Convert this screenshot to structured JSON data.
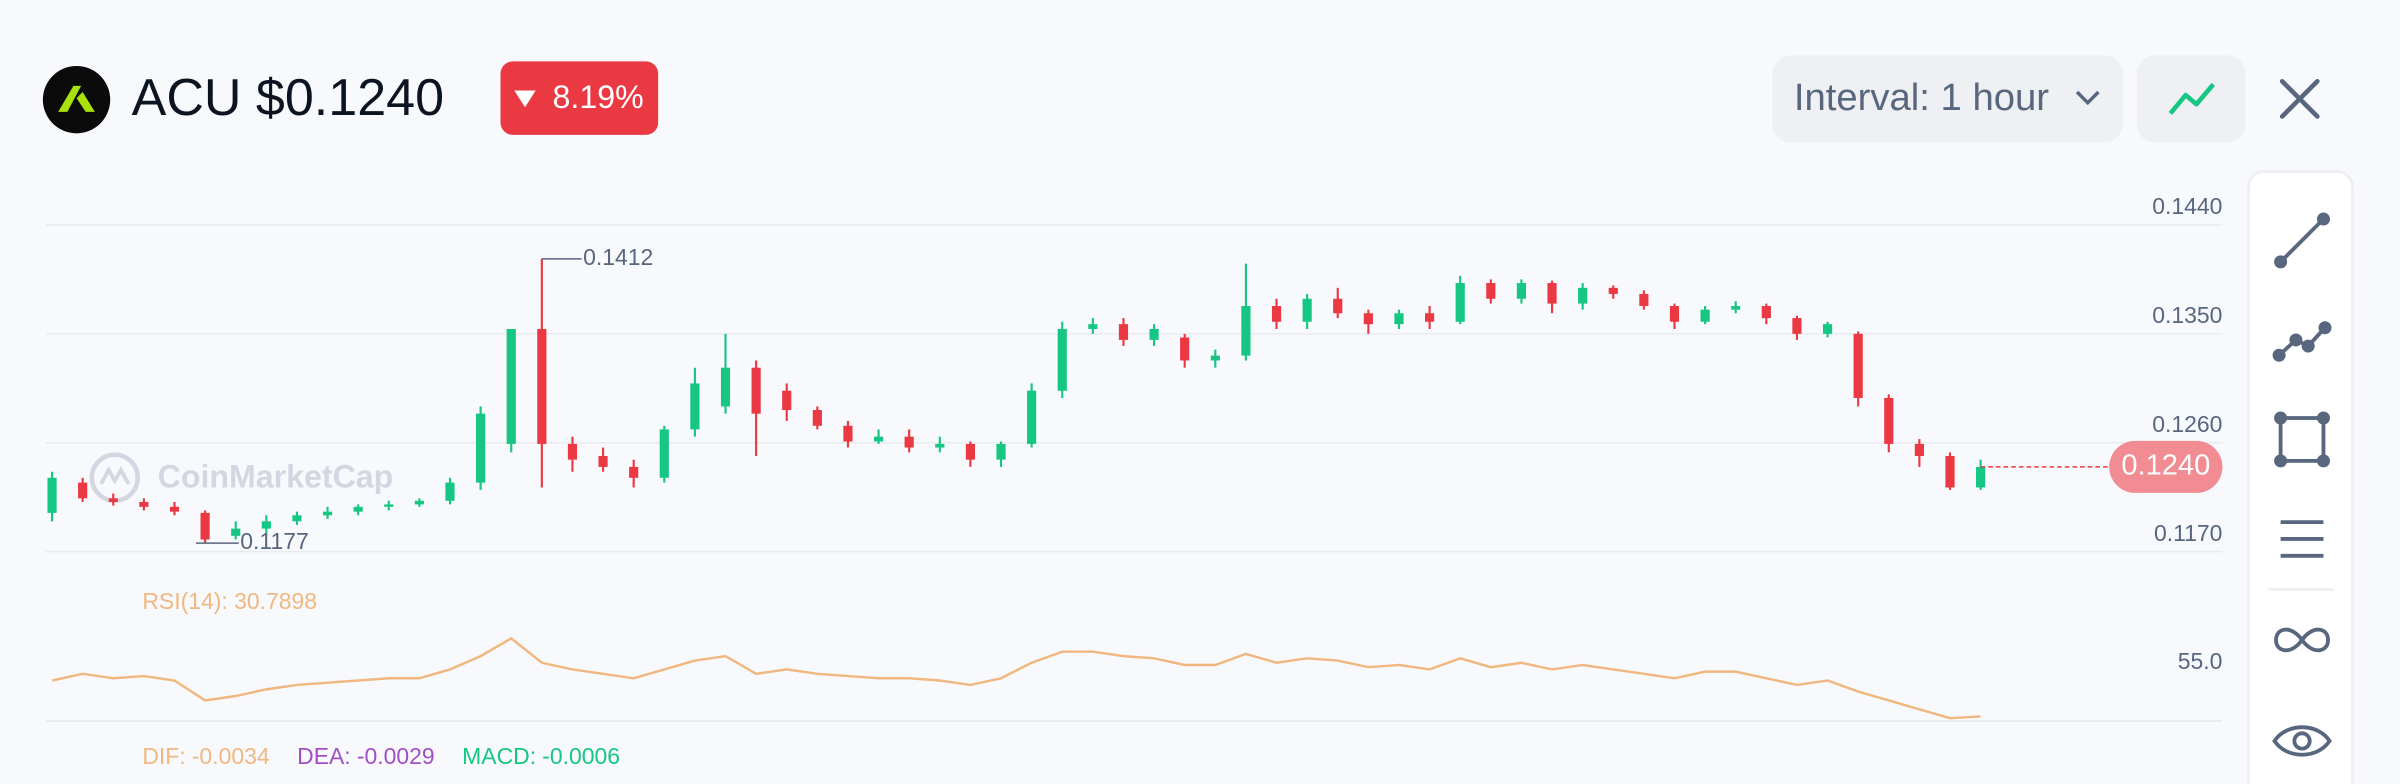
{
  "header": {
    "symbol": "ACU $0.1240",
    "change": "8.19%",
    "interval": "Interval: 1 hour"
  },
  "chart_data": {
    "type": "candlestick",
    "watermark": "CoinMarketCap",
    "up_color": "#16c784",
    "down_color": "#ea3943",
    "open": [
      0.1202,
      0.1227,
      0.1214,
      0.1211,
      0.1207,
      0.1202,
      0.1183,
      0.1189,
      0.1195,
      0.12,
      0.1203,
      0.1207,
      0.1209,
      0.1212,
      0.1227,
      0.1259,
      0.1354,
      0.1259,
      0.1249,
      0.124,
      0.1231,
      0.1271,
      0.129,
      0.1322,
      0.1303,
      0.1287,
      0.1274,
      0.1261,
      0.1265,
      0.1256,
      0.1259,
      0.1246,
      0.1259,
      0.1303,
      0.1354,
      0.1358,
      0.1345,
      0.1347,
      0.1328,
      0.1332,
      0.1373,
      0.136,
      0.1379,
      0.1367,
      0.1358,
      0.1367,
      0.136,
      0.1392,
      0.1379,
      0.1392,
      0.1375,
      0.1388,
      0.1383,
      0.1373,
      0.136,
      0.137,
      0.1373,
      0.1363,
      0.135,
      0.135,
      0.1297,
      0.1259,
      0.1249,
      0.1223
    ],
    "high": [
      0.1236,
      0.1231,
      0.1218,
      0.1214,
      0.1211,
      0.1204,
      0.1195,
      0.12,
      0.1203,
      0.1207,
      0.1209,
      0.1212,
      0.1214,
      0.1231,
      0.129,
      0.1354,
      0.1412,
      0.1265,
      0.1256,
      0.1246,
      0.1274,
      0.1322,
      0.135,
      0.1328,
      0.1309,
      0.129,
      0.1278,
      0.1271,
      0.1271,
      0.1265,
      0.1261,
      0.1261,
      0.1309,
      0.136,
      0.1363,
      0.1363,
      0.1358,
      0.135,
      0.1337,
      0.1408,
      0.1379,
      0.1383,
      0.1388,
      0.137,
      0.137,
      0.1373,
      0.1398,
      0.1395,
      0.1395,
      0.1394,
      0.1392,
      0.139,
      0.1386,
      0.1375,
      0.1373,
      0.1377,
      0.1375,
      0.1365,
      0.136,
      0.1352,
      0.13,
      0.1263,
      0.1252,
      0.1246
    ],
    "low": [
      0.1195,
      0.1211,
      0.1208,
      0.1204,
      0.12,
      0.1177,
      0.118,
      0.1185,
      0.1192,
      0.1197,
      0.12,
      0.1204,
      0.1207,
      0.1209,
      0.1221,
      0.1252,
      0.1223,
      0.1236,
      0.1236,
      0.1223,
      0.1227,
      0.1265,
      0.1284,
      0.1249,
      0.1278,
      0.1271,
      0.1256,
      0.1259,
      0.1252,
      0.1252,
      0.124,
      0.124,
      0.1256,
      0.1297,
      0.135,
      0.134,
      0.134,
      0.1322,
      0.1322,
      0.1328,
      0.1354,
      0.1354,
      0.1363,
      0.135,
      0.1354,
      0.1354,
      0.1358,
      0.1375,
      0.1375,
      0.1367,
      0.137,
      0.1379,
      0.137,
      0.1354,
      0.1358,
      0.1367,
      0.1358,
      0.1345,
      0.1347,
      0.129,
      0.1252,
      0.124,
      0.1221,
      0.1221
    ],
    "close": [
      0.1231,
      0.1214,
      0.1211,
      0.1207,
      0.1203,
      0.118,
      0.1189,
      0.1195,
      0.12,
      0.1203,
      0.1207,
      0.1209,
      0.1212,
      0.1227,
      0.1284,
      0.1354,
      0.1259,
      0.1246,
      0.124,
      0.1231,
      0.1271,
      0.1309,
      0.1322,
      0.1284,
      0.1287,
      0.1274,
      0.1261,
      0.1265,
      0.1256,
      0.1259,
      0.1246,
      0.1259,
      0.1303,
      0.1354,
      0.1358,
      0.1345,
      0.1354,
      0.1328,
      0.1332,
      0.1373,
      0.136,
      0.1379,
      0.1367,
      0.1358,
      0.1367,
      0.136,
      0.1392,
      0.1379,
      0.1392,
      0.1375,
      0.1388,
      0.1383,
      0.1373,
      0.136,
      0.137,
      0.1373,
      0.1363,
      0.135,
      0.1358,
      0.1297,
      0.1259,
      0.1249,
      0.1223,
      0.124
    ],
    "ylim": [
      0.1164,
      0.1474
    ],
    "yticks": [
      {
        "value": 0.144,
        "label": "0.1440"
      },
      {
        "value": 0.135,
        "label": "0.1350"
      },
      {
        "value": 0.126,
        "label": "0.1260"
      },
      {
        "value": 0.117,
        "label": "0.1170"
      }
    ],
    "grid": true,
    "high_marker": 0.1412,
    "low_marker": 0.1177,
    "last_price": {
      "value": 0.124,
      "label": "0.1240"
    },
    "rsi": {
      "label": "RSI(14):",
      "color": "#f0b880",
      "values": [
        47,
        50,
        48,
        49,
        47,
        38,
        40,
        43,
        45,
        46,
        47,
        48,
        48,
        52,
        58,
        66,
        55,
        52,
        50,
        48,
        52,
        56,
        58,
        50,
        52,
        50,
        49,
        48,
        48,
        47,
        45,
        48,
        55,
        60,
        60,
        58,
        57,
        54,
        54,
        59,
        55,
        57,
        56,
        53,
        54,
        52,
        57,
        53,
        55,
        52,
        54,
        52,
        50,
        48,
        51,
        51,
        48,
        45,
        47,
        42,
        38,
        34,
        30,
        30.7898
      ],
      "ylim": [
        28,
        86
      ],
      "yticks": [
        {
          "value": 55,
          "label": "55.0"
        }
      ]
    },
    "macd": [
      {
        "name": "DIF:",
        "value": -0.0034,
        "color": "#f0b880"
      },
      {
        "name": "DEA:",
        "value": -0.0029,
        "color": "#a24fc5"
      },
      {
        "name": "MACD:",
        "value": -0.0006,
        "color": "#16c784"
      }
    ]
  }
}
